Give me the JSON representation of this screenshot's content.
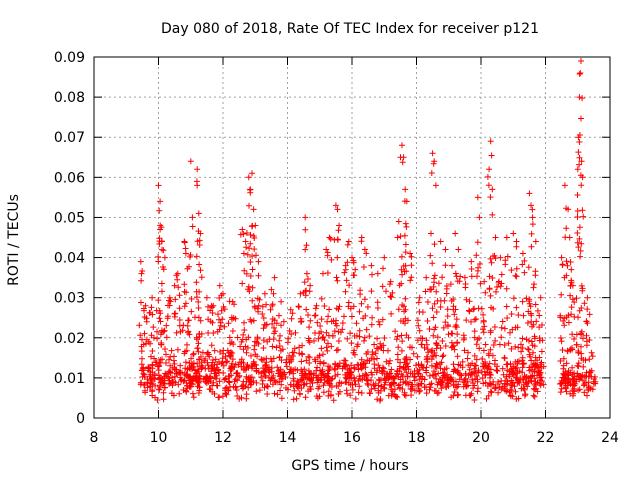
{
  "chart_data": {
    "type": "scatter",
    "title": "Day 080 of 2018, Rate Of TEC Index for receiver p121",
    "xlabel": "GPS time / hours",
    "ylabel": "ROTI / TECUs",
    "xlim": [
      8,
      24
    ],
    "ylim": [
      0,
      0.09
    ],
    "x_ticks": [
      8,
      10,
      12,
      14,
      16,
      18,
      20,
      22,
      24
    ],
    "x_tick_labels": [
      "8",
      "10",
      "12",
      "14",
      "16",
      "18",
      "20",
      "22",
      "24"
    ],
    "y_ticks": [
      0,
      0.01,
      0.02,
      0.03,
      0.04,
      0.05,
      0.06,
      0.07,
      0.08,
      0.09
    ],
    "y_tick_labels": [
      "0",
      "0.01",
      "0.02",
      "0.03",
      "0.04",
      "0.05",
      "0.06",
      "0.07",
      "0.08",
      "0.09"
    ],
    "grid": true,
    "marker": "+",
    "color": "#ff0000",
    "series": [
      {
        "name": "ROTI",
        "segments": [
          {
            "x_start": 9.45,
            "x_end": 21.95,
            "baseline": 0.01,
            "spread": 0.006
          },
          {
            "x_start": 22.45,
            "x_end": 23.55,
            "baseline": 0.009,
            "spread": 0.004
          }
        ],
        "points": [
          [
            9.45,
            0.039
          ],
          [
            9.6,
            0.028
          ],
          [
            9.8,
            0.03
          ],
          [
            10.0,
            0.058
          ],
          [
            10.05,
            0.054
          ],
          [
            10.05,
            0.047
          ],
          [
            10.1,
            0.044
          ],
          [
            10.2,
            0.04
          ],
          [
            10.35,
            0.03
          ],
          [
            10.5,
            0.033
          ],
          [
            10.6,
            0.036
          ],
          [
            10.8,
            0.044
          ],
          [
            10.85,
            0.041
          ],
          [
            11.0,
            0.064
          ],
          [
            11.05,
            0.05
          ],
          [
            11.2,
            0.062
          ],
          [
            11.2,
            0.058
          ],
          [
            11.25,
            0.051
          ],
          [
            11.3,
            0.046
          ],
          [
            11.5,
            0.03
          ],
          [
            11.7,
            0.028
          ],
          [
            11.9,
            0.033
          ],
          [
            12.0,
            0.031
          ],
          [
            12.3,
            0.029
          ],
          [
            12.6,
            0.047
          ],
          [
            12.7,
            0.044
          ],
          [
            12.8,
            0.06
          ],
          [
            12.85,
            0.057
          ],
          [
            12.9,
            0.061
          ],
          [
            12.95,
            0.052
          ],
          [
            13.0,
            0.048
          ],
          [
            13.1,
            0.039
          ],
          [
            13.3,
            0.031
          ],
          [
            13.5,
            0.032
          ],
          [
            13.6,
            0.035
          ],
          [
            13.8,
            0.029
          ],
          [
            14.1,
            0.027
          ],
          [
            14.4,
            0.031
          ],
          [
            14.55,
            0.05
          ],
          [
            14.6,
            0.036
          ],
          [
            14.7,
            0.033
          ],
          [
            14.9,
            0.028
          ],
          [
            15.1,
            0.036
          ],
          [
            15.2,
            0.042
          ],
          [
            15.3,
            0.045
          ],
          [
            15.5,
            0.053
          ],
          [
            15.55,
            0.052
          ],
          [
            15.6,
            0.048
          ],
          [
            15.8,
            0.038
          ],
          [
            15.9,
            0.044
          ],
          [
            16.0,
            0.04
          ],
          [
            16.1,
            0.037
          ],
          [
            16.3,
            0.045
          ],
          [
            16.4,
            0.042
          ],
          [
            16.6,
            0.038
          ],
          [
            16.8,
            0.036
          ],
          [
            17.0,
            0.04
          ],
          [
            17.2,
            0.034
          ],
          [
            17.45,
            0.049
          ],
          [
            17.55,
            0.068
          ],
          [
            17.6,
            0.065
          ],
          [
            17.65,
            0.057
          ],
          [
            17.7,
            0.054
          ],
          [
            17.8,
            0.041
          ],
          [
            18.1,
            0.03
          ],
          [
            18.3,
            0.035
          ],
          [
            18.45,
            0.046
          ],
          [
            18.5,
            0.066
          ],
          [
            18.55,
            0.064
          ],
          [
            18.6,
            0.058
          ],
          [
            18.75,
            0.044
          ],
          [
            18.9,
            0.042
          ],
          [
            19.1,
            0.038
          ],
          [
            19.2,
            0.046
          ],
          [
            19.3,
            0.042
          ],
          [
            19.5,
            0.035
          ],
          [
            19.7,
            0.039
          ],
          [
            19.9,
            0.055
          ],
          [
            19.95,
            0.05
          ],
          [
            20.1,
            0.034
          ],
          [
            20.25,
            0.062
          ],
          [
            20.3,
            0.069
          ],
          [
            20.35,
            0.057
          ],
          [
            20.45,
            0.045
          ],
          [
            20.6,
            0.04
          ],
          [
            20.8,
            0.045
          ],
          [
            21.0,
            0.046
          ],
          [
            21.1,
            0.044
          ],
          [
            21.3,
            0.041
          ],
          [
            21.5,
            0.056
          ],
          [
            21.55,
            0.053
          ],
          [
            21.6,
            0.05
          ],
          [
            21.7,
            0.044
          ],
          [
            21.85,
            0.03
          ],
          [
            22.5,
            0.04
          ],
          [
            22.6,
            0.058
          ],
          [
            22.7,
            0.052
          ],
          [
            22.75,
            0.045
          ],
          [
            22.8,
            0.037
          ],
          [
            22.85,
            0.033
          ],
          [
            23.0,
            0.062
          ],
          [
            23.02,
            0.07
          ],
          [
            23.05,
            0.08
          ],
          [
            23.08,
            0.086
          ],
          [
            23.1,
            0.089
          ],
          [
            23.12,
            0.064
          ],
          [
            23.15,
            0.06
          ],
          [
            23.3,
            0.03
          ]
        ]
      }
    ]
  }
}
